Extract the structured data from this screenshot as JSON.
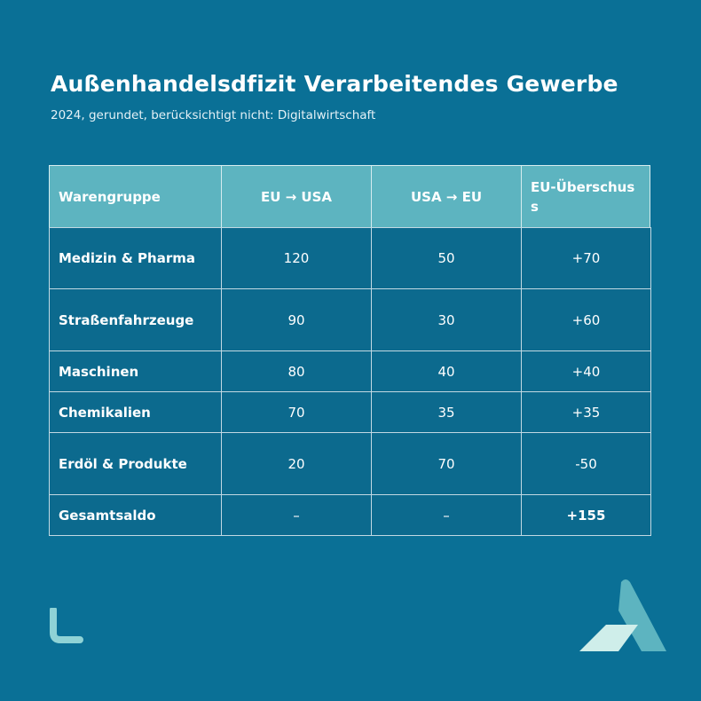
{
  "header": {
    "title": "Außenhandelsdfizit Verarbeitendes Gewerbe",
    "subtitle": "2024, gerundet, berücksichtigt nicht: Digitalwirtschaft"
  },
  "table": {
    "columns": [
      "Warengruppe",
      "EU → USA",
      "USA → EU",
      "EU-Überschuss"
    ],
    "rows": [
      [
        "Medizin & Pharma",
        "120",
        "50",
        "+70"
      ],
      [
        "Straßenfahrzeuge",
        "90",
        "30",
        "+60"
      ],
      [
        "Maschinen",
        "80",
        "40",
        "+40"
      ],
      [
        "Chemikalien",
        "70",
        "35",
        "+35"
      ],
      [
        "Erdöl & Produkte",
        "20",
        "70",
        "-50"
      ],
      [
        "Gesamtsaldo",
        "–",
        "–",
        "+155"
      ]
    ]
  }
}
